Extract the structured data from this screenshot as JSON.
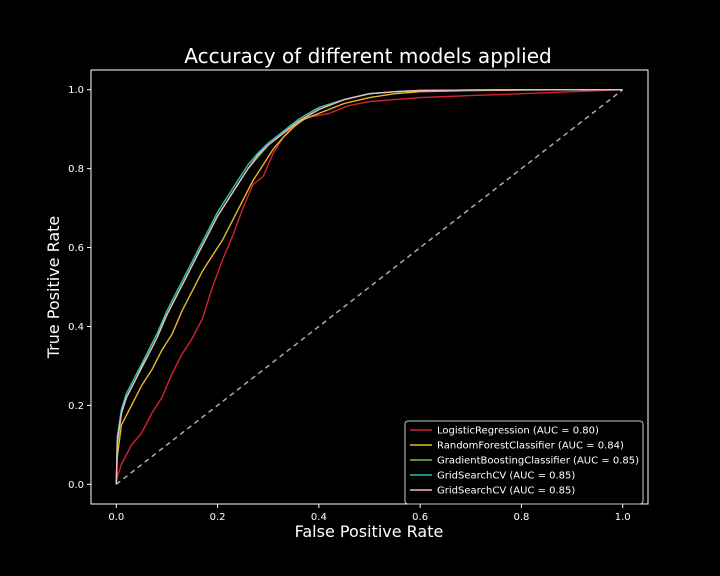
{
  "chart_data": {
    "type": "line",
    "title": "Accuracy of different models applied",
    "xlabel": "False Positive Rate",
    "ylabel": "True Positive Rate",
    "xlim": [
      -0.05,
      1.05
    ],
    "ylim": [
      -0.05,
      1.05
    ],
    "xticks": [
      "0.0",
      "0.2",
      "0.4",
      "0.6",
      "0.8",
      "1.0"
    ],
    "yticks": [
      "0.0",
      "0.2",
      "0.4",
      "0.6",
      "0.8",
      "1.0"
    ],
    "grid": false,
    "legend_position": "lower-right",
    "reference_line": {
      "x": [
        0,
        1
      ],
      "y": [
        0,
        1
      ],
      "style": "dashed",
      "color": "#aaaaaa"
    },
    "series": [
      {
        "name": "LogisticRegression (AUC = 0.80)",
        "color": "#d62035",
        "x": [
          0,
          0.002,
          0.01,
          0.03,
          0.05,
          0.07,
          0.09,
          0.11,
          0.13,
          0.15,
          0.17,
          0.19,
          0.21,
          0.23,
          0.25,
          0.27,
          0.29,
          0.31,
          0.33,
          0.35,
          0.38,
          0.42,
          0.46,
          0.5,
          0.55,
          0.6,
          0.7,
          0.8,
          0.9,
          1.0
        ],
        "y": [
          0,
          0.02,
          0.05,
          0.1,
          0.13,
          0.18,
          0.22,
          0.28,
          0.33,
          0.37,
          0.42,
          0.5,
          0.57,
          0.63,
          0.7,
          0.76,
          0.78,
          0.84,
          0.88,
          0.91,
          0.93,
          0.94,
          0.96,
          0.97,
          0.975,
          0.98,
          0.985,
          0.99,
          0.995,
          1.0
        ]
      },
      {
        "name": "RandomForestClassifier (AUC = 0.84)",
        "color": "#e8b923",
        "x": [
          0,
          0.002,
          0.01,
          0.03,
          0.05,
          0.07,
          0.09,
          0.11,
          0.13,
          0.15,
          0.17,
          0.19,
          0.21,
          0.23,
          0.25,
          0.27,
          0.29,
          0.31,
          0.33,
          0.35,
          0.37,
          0.4,
          0.45,
          0.5,
          0.55,
          0.6,
          0.7,
          0.8,
          0.9,
          1.0
        ],
        "y": [
          0,
          0.07,
          0.15,
          0.2,
          0.25,
          0.29,
          0.34,
          0.38,
          0.44,
          0.49,
          0.54,
          0.58,
          0.62,
          0.67,
          0.72,
          0.77,
          0.81,
          0.85,
          0.88,
          0.905,
          0.925,
          0.94,
          0.965,
          0.98,
          0.99,
          0.995,
          0.998,
          0.999,
          1.0,
          1.0
        ]
      },
      {
        "name": "GradientBoostingClassifier (AUC = 0.85)",
        "color": "#6dc53a",
        "x": [
          0,
          0.002,
          0.01,
          0.02,
          0.04,
          0.06,
          0.08,
          0.1,
          0.12,
          0.14,
          0.16,
          0.18,
          0.2,
          0.22,
          0.24,
          0.26,
          0.28,
          0.3,
          0.32,
          0.34,
          0.36,
          0.38,
          0.4,
          0.45,
          0.5,
          0.55,
          0.6,
          0.7,
          0.8,
          0.9,
          1.0
        ],
        "y": [
          0,
          0.1,
          0.18,
          0.22,
          0.27,
          0.33,
          0.38,
          0.43,
          0.48,
          0.53,
          0.58,
          0.63,
          0.68,
          0.72,
          0.76,
          0.8,
          0.83,
          0.86,
          0.88,
          0.905,
          0.925,
          0.94,
          0.955,
          0.975,
          0.99,
          0.995,
          0.998,
          0.999,
          1.0,
          1.0,
          1.0
        ]
      },
      {
        "name": "GridSearchCV (AUC = 0.85)",
        "color": "#2bc0b4",
        "x": [
          0,
          0.002,
          0.01,
          0.02,
          0.04,
          0.06,
          0.08,
          0.1,
          0.12,
          0.14,
          0.16,
          0.18,
          0.2,
          0.22,
          0.24,
          0.26,
          0.28,
          0.3,
          0.32,
          0.34,
          0.36,
          0.38,
          0.4,
          0.45,
          0.5,
          0.55,
          0.6,
          0.7,
          0.8,
          0.9,
          1.0
        ],
        "y": [
          0,
          0.12,
          0.19,
          0.23,
          0.28,
          0.33,
          0.38,
          0.44,
          0.49,
          0.54,
          0.59,
          0.64,
          0.69,
          0.73,
          0.77,
          0.81,
          0.84,
          0.865,
          0.885,
          0.905,
          0.925,
          0.94,
          0.955,
          0.975,
          0.99,
          0.995,
          0.998,
          0.999,
          1.0,
          1.0,
          1.0
        ]
      },
      {
        "name": "GridSearchCV (AUC = 0.85)",
        "color": "#f2b6c6",
        "x": [
          0,
          0.002,
          0.01,
          0.02,
          0.04,
          0.06,
          0.08,
          0.1,
          0.12,
          0.14,
          0.16,
          0.18,
          0.2,
          0.22,
          0.24,
          0.26,
          0.28,
          0.3,
          0.32,
          0.34,
          0.36,
          0.38,
          0.4,
          0.45,
          0.5,
          0.55,
          0.6,
          0.7,
          0.8,
          0.9,
          1.0
        ],
        "y": [
          0,
          0.11,
          0.18,
          0.22,
          0.27,
          0.32,
          0.37,
          0.43,
          0.48,
          0.53,
          0.58,
          0.63,
          0.68,
          0.72,
          0.76,
          0.8,
          0.835,
          0.86,
          0.88,
          0.9,
          0.92,
          0.935,
          0.95,
          0.975,
          0.99,
          0.995,
          0.998,
          0.999,
          1.0,
          1.0,
          1.0
        ]
      }
    ]
  }
}
